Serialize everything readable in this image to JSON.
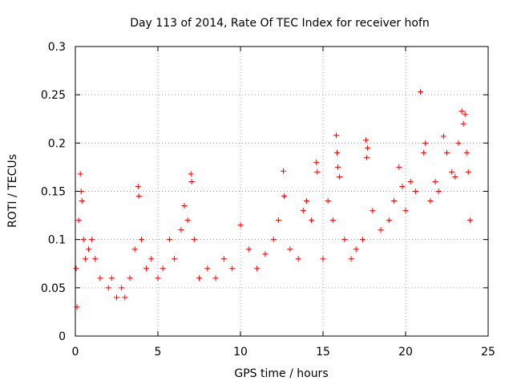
{
  "chart_data": {
    "type": "scatter",
    "title": "Day 113 of 2014, Rate Of TEC Index for receiver hofn",
    "xlabel": "GPS time / hours",
    "ylabel": "ROTI / TECUs",
    "xlim": [
      0,
      25
    ],
    "ylim": [
      0,
      0.3
    ],
    "xticks": [
      0,
      5,
      10,
      15,
      20,
      25
    ],
    "xtick_labels": [
      "0",
      "5",
      "10",
      "15",
      "20",
      "25"
    ],
    "yticks": [
      0,
      0.05,
      0.1,
      0.15,
      0.2,
      0.25,
      0.3
    ],
    "ytick_labels": [
      "0",
      "0.05",
      "0.1",
      "0.15",
      "0.2",
      "0.25",
      "0.3"
    ],
    "grid": true,
    "marker": "+",
    "color": "#ff0000",
    "series": [
      {
        "name": "ROTI",
        "points": [
          [
            0.05,
            0.07
          ],
          [
            0.1,
            0.03
          ],
          [
            0.2,
            0.12
          ],
          [
            0.3,
            0.168
          ],
          [
            0.35,
            0.15
          ],
          [
            0.4,
            0.14
          ],
          [
            0.5,
            0.1
          ],
          [
            0.6,
            0.08
          ],
          [
            0.8,
            0.09
          ],
          [
            1.0,
            0.1
          ],
          [
            1.2,
            0.08
          ],
          [
            1.5,
            0.06
          ],
          [
            2.0,
            0.05
          ],
          [
            2.2,
            0.06
          ],
          [
            2.5,
            0.04
          ],
          [
            2.8,
            0.05
          ],
          [
            3.0,
            0.04
          ],
          [
            3.3,
            0.06
          ],
          [
            3.6,
            0.09
          ],
          [
            3.8,
            0.155
          ],
          [
            3.85,
            0.145
          ],
          [
            4.0,
            0.1
          ],
          [
            4.3,
            0.07
          ],
          [
            4.6,
            0.08
          ],
          [
            5.0,
            0.06
          ],
          [
            5.3,
            0.07
          ],
          [
            5.7,
            0.1
          ],
          [
            6.0,
            0.08
          ],
          [
            6.4,
            0.11
          ],
          [
            6.6,
            0.135
          ],
          [
            6.8,
            0.12
          ],
          [
            7.0,
            0.168
          ],
          [
            7.05,
            0.16
          ],
          [
            7.2,
            0.1
          ],
          [
            7.5,
            0.06
          ],
          [
            8.0,
            0.07
          ],
          [
            8.5,
            0.06
          ],
          [
            9.0,
            0.08
          ],
          [
            9.5,
            0.07
          ],
          [
            10.0,
            0.115
          ],
          [
            10.5,
            0.09
          ],
          [
            11.0,
            0.07
          ],
          [
            11.5,
            0.085
          ],
          [
            12.0,
            0.1
          ],
          [
            12.3,
            0.12
          ],
          [
            12.6,
            0.171
          ],
          [
            12.65,
            0.145
          ],
          [
            13.0,
            0.09
          ],
          [
            13.5,
            0.08
          ],
          [
            13.8,
            0.13
          ],
          [
            14.0,
            0.14
          ],
          [
            14.3,
            0.12
          ],
          [
            14.6,
            0.18
          ],
          [
            14.65,
            0.17
          ],
          [
            15.0,
            0.08
          ],
          [
            15.3,
            0.14
          ],
          [
            15.6,
            0.12
          ],
          [
            15.8,
            0.208
          ],
          [
            15.85,
            0.19
          ],
          [
            15.9,
            0.175
          ],
          [
            16.0,
            0.165
          ],
          [
            16.3,
            0.1
          ],
          [
            16.7,
            0.08
          ],
          [
            17.0,
            0.09
          ],
          [
            17.4,
            0.1
          ],
          [
            17.6,
            0.203
          ],
          [
            17.65,
            0.185
          ],
          [
            17.7,
            0.195
          ],
          [
            18.0,
            0.13
          ],
          [
            18.5,
            0.11
          ],
          [
            19.0,
            0.12
          ],
          [
            19.3,
            0.14
          ],
          [
            19.6,
            0.175
          ],
          [
            19.8,
            0.155
          ],
          [
            20.0,
            0.13
          ],
          [
            20.3,
            0.16
          ],
          [
            20.6,
            0.15
          ],
          [
            20.9,
            0.253
          ],
          [
            21.1,
            0.19
          ],
          [
            21.2,
            0.2
          ],
          [
            21.5,
            0.14
          ],
          [
            21.8,
            0.16
          ],
          [
            22.0,
            0.15
          ],
          [
            22.3,
            0.207
          ],
          [
            22.5,
            0.19
          ],
          [
            22.8,
            0.17
          ],
          [
            23.0,
            0.165
          ],
          [
            23.2,
            0.2
          ],
          [
            23.4,
            0.233
          ],
          [
            23.5,
            0.22
          ],
          [
            23.6,
            0.23
          ],
          [
            23.7,
            0.19
          ],
          [
            23.8,
            0.17
          ],
          [
            23.9,
            0.12
          ]
        ]
      }
    ]
  }
}
